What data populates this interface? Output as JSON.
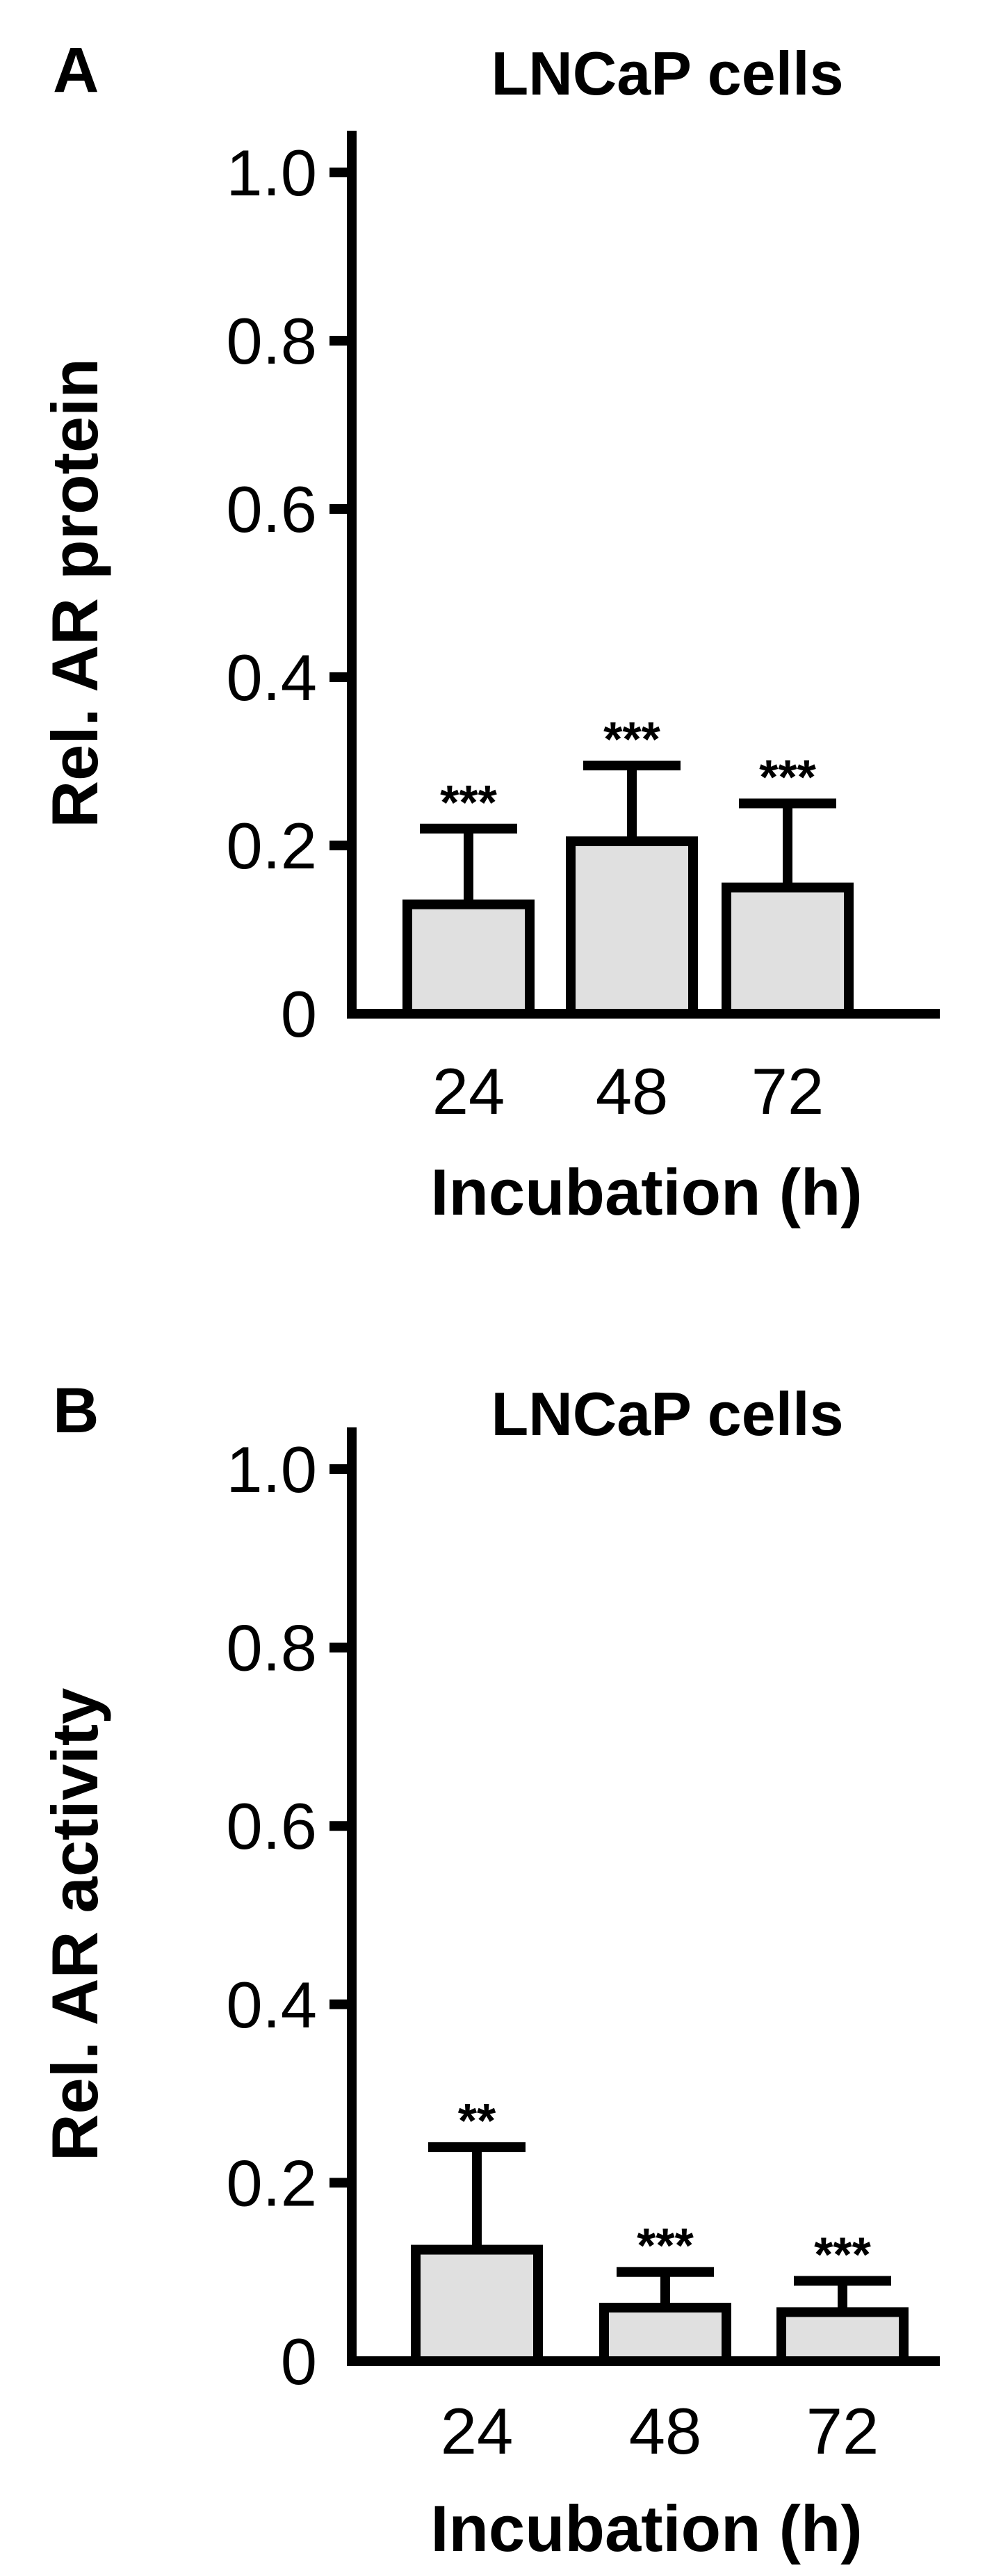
{
  "figure": {
    "background": "#ffffff",
    "bar_fill": "#e0e0e0",
    "stroke": "#000000"
  },
  "chart_data": [
    {
      "type": "bar",
      "panel_label": "A",
      "title": "LNCaP cells",
      "xlabel": "Incubation (h)",
      "ylabel": "Rel. AR protein",
      "categories": [
        "24",
        "48",
        "72"
      ],
      "values": [
        0.13,
        0.205,
        0.15
      ],
      "error_upper": [
        0.22,
        0.295,
        0.25
      ],
      "significance": [
        "***",
        "***",
        "***"
      ],
      "ylim": [
        0,
        1.0
      ],
      "yticks": [
        "0",
        "0.2",
        "0.4",
        "0.6",
        "0.8",
        "1.0"
      ],
      "grid": false,
      "legend": "none"
    },
    {
      "type": "bar",
      "panel_label": "B",
      "title": "LNCaP cells",
      "xlabel": "Incubation (h)",
      "ylabel": "Rel. AR activity",
      "categories": [
        "24",
        "48",
        "72"
      ],
      "values": [
        0.125,
        0.06,
        0.055
      ],
      "error_upper": [
        0.24,
        0.1,
        0.09
      ],
      "significance": [
        "**",
        "***",
        "***"
      ],
      "ylim": [
        0,
        1.0
      ],
      "yticks": [
        "0",
        "0.2",
        "0.4",
        "0.6",
        "0.8",
        "1.0"
      ],
      "grid": false,
      "legend": "none"
    }
  ]
}
